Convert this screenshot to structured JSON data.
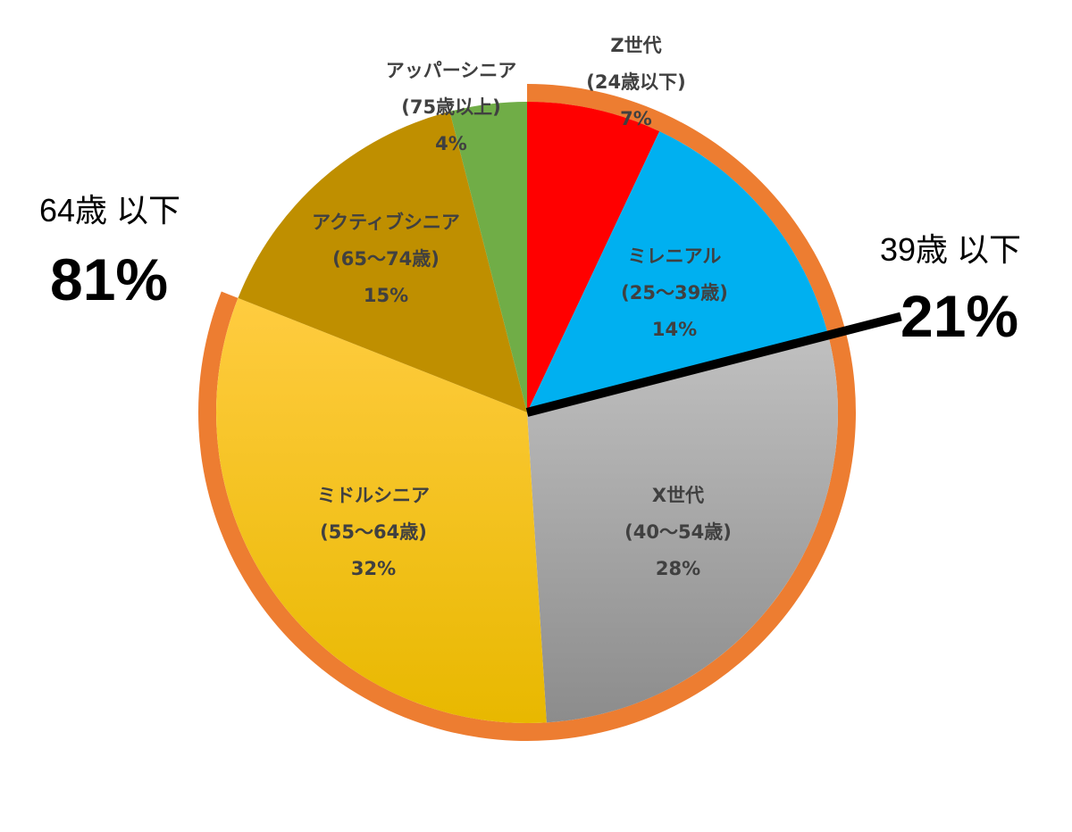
{
  "chart_data": {
    "type": "pie",
    "start_angle": "12 o'clock",
    "direction": "clockwise",
    "slices": [
      {
        "lines": [
          "Z世代",
          "(24歳以下)",
          "7%"
        ],
        "value": 7,
        "color": "#ff0000"
      },
      {
        "lines": [
          "ミレニアル",
          "(25〜39歳)",
          "14%"
        ],
        "value": 14,
        "color": "#00b0f0"
      },
      {
        "lines": [
          "X世代",
          "(40〜54歳)",
          "28%"
        ],
        "value": 28,
        "color": "#a6a6a6"
      },
      {
        "lines": [
          "ミドルシニア",
          "(55〜64歳)",
          "32%"
        ],
        "value": 32,
        "color": "#ffc000"
      },
      {
        "lines": [
          "アクティブシニア",
          "(65〜74歳)",
          "15%"
        ],
        "value": 15,
        "color": "#bf8f00"
      },
      {
        "lines": [
          "アッパーシニア",
          "(75歳以上)",
          "4%"
        ],
        "value": 4,
        "color": "#70ad47"
      }
    ],
    "groups": [
      {
        "caption": "39歳 以下",
        "value_label": "21%",
        "covers": [
          0,
          1
        ]
      },
      {
        "caption": "64歳 以下",
        "value_label": "81%",
        "covers": [
          0,
          1,
          2,
          3
        ]
      }
    ],
    "highlight_ring_color": "#ed7d31",
    "divider_color": "#000000"
  }
}
